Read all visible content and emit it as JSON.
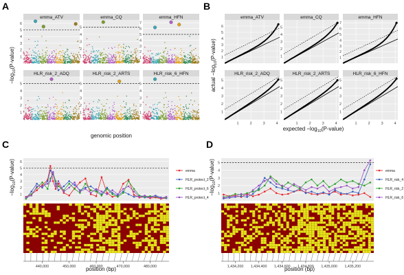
{
  "panels": {
    "A": {
      "letter": "A",
      "xlabel": "genomic position",
      "ylabel_main": "−log",
      "ylabel_sub": "10",
      "ylabel_tail": "(P-value)"
    },
    "B": {
      "letter": "B",
      "xlabel_main": "expected  −log",
      "xlabel_sub": "10",
      "xlabel_tail": "(P-value)",
      "ylabel_main": "actual  −log",
      "ylabel_sub": "10",
      "ylabel_tail": "(P-value)"
    },
    "C": {
      "letter": "C",
      "xlabel": "position (bp)",
      "ylabel_main": "−log",
      "ylabel_sub": "10",
      "ylabel_tail": "(P-value)"
    },
    "D": {
      "letter": "D",
      "xlabel": "position (bp)",
      "ylabel_main": "−log",
      "ylabel_sub": "10",
      "ylabel_tail": "(P-value)"
    }
  },
  "chart_data": [
    {
      "id": "A",
      "type": "scatter",
      "title": "",
      "threshold": 5.0,
      "chromosome_colors": [
        "#d23a6a",
        "#3aa6b6",
        "#7a9d2a",
        "#b35fc6",
        "#e0a11a",
        "#2e8b57",
        "#9a7b1c"
      ],
      "facets": [
        {
          "name": "emma_ATV",
          "ylim": [
            0,
            6.5
          ],
          "yticks": [
            1,
            2,
            3,
            4,
            5,
            6
          ],
          "top_hits": [
            {
              "chrom": 2,
              "value": 6.3
            },
            {
              "chrom": 3,
              "value": 5.5
            },
            {
              "chrom": 7,
              "value": 5.9
            }
          ]
        },
        {
          "name": "emma_CQ",
          "ylim": [
            0,
            6
          ],
          "yticks": [
            1,
            2,
            3,
            4,
            5
          ],
          "top_hits": [
            {
              "chrom": 3,
              "value": 5.7
            }
          ]
        },
        {
          "name": "emma_HFN",
          "ylim": [
            0,
            7.5
          ],
          "yticks": [
            1,
            2,
            3,
            4,
            5,
            6,
            7
          ],
          "top_hits": [
            {
              "chrom": 4,
              "value": 7.1
            },
            {
              "chrom": 5,
              "value": 6.7
            },
            {
              "chrom": 2,
              "value": 6.2
            }
          ]
        },
        {
          "name": "HLR_risk_2_ADQ",
          "ylim": [
            0,
            6
          ],
          "yticks": [
            1,
            2,
            3,
            4,
            5
          ],
          "top_hits": [
            {
              "chrom": 4,
              "value": 5.6
            }
          ]
        },
        {
          "name": "HLR_risk_2_ARTS",
          "ylim": [
            0,
            6
          ],
          "yticks": [
            1,
            2,
            3,
            4,
            5
          ],
          "top_hits": [
            {
              "chrom": 5,
              "value": 5.3
            }
          ]
        },
        {
          "name": "HLR_risk_6_HFN",
          "ylim": [
            0,
            6
          ],
          "yticks": [
            1,
            2,
            3,
            4,
            5
          ],
          "top_hits": [
            {
              "chrom": 2,
              "value": 5.6
            }
          ]
        }
      ]
    },
    {
      "id": "B",
      "type": "scatter",
      "title": "",
      "xlim": [
        0,
        4.2
      ],
      "xticks": [
        1,
        2,
        3,
        4
      ],
      "facets": [
        {
          "name": "emma_ATV",
          "ylim": [
            0,
            7
          ],
          "yticks": [
            1,
            2,
            3,
            4,
            5,
            6
          ],
          "max_expected": 4.1,
          "max_actual": 6.3
        },
        {
          "name": "emma_CQ",
          "ylim": [
            0,
            6
          ],
          "yticks": [
            1,
            2,
            3,
            4,
            5
          ],
          "max_expected": 4.1,
          "max_actual": 5.6
        },
        {
          "name": "emma_HFN",
          "ylim": [
            0,
            7.5
          ],
          "yticks": [
            1,
            2,
            3,
            4,
            5,
            6,
            7
          ],
          "max_expected": 4.1,
          "max_actual": 7.0
        },
        {
          "name": "HLR_risk_2_ADQ",
          "ylim": [
            0,
            5.5
          ],
          "yticks": [
            1,
            2,
            3,
            4,
            5
          ],
          "max_expected": 4.1,
          "max_actual": 5.1
        },
        {
          "name": "HLR_risk_2_ARTS",
          "ylim": [
            0,
            5.5
          ],
          "yticks": [
            1,
            2,
            3,
            4,
            5
          ],
          "max_expected": 4.1,
          "max_actual": 5.0
        },
        {
          "name": "HLR_risk_6_HFN",
          "ylim": [
            0,
            5.5
          ],
          "yticks": [
            1,
            2,
            3,
            4,
            5
          ],
          "max_expected": 4.1,
          "max_actual": 5.2
        }
      ]
    },
    {
      "id": "C",
      "type": "line",
      "title": "",
      "xlim": [
        433000,
        487000
      ],
      "xticks": [
        440000,
        450000,
        460000,
        470000,
        480000
      ],
      "xticklabels": [
        "440,000",
        "450,000",
        "460,000",
        "470,000",
        "480,000"
      ],
      "ylim": [
        0,
        6.5
      ],
      "yticks": [
        1,
        2,
        3,
        4,
        5,
        6
      ],
      "threshold": 5.0,
      "x": [
        434000,
        436000,
        438000,
        440000,
        442000,
        443000,
        444000,
        445000,
        446000,
        448000,
        450000,
        452000,
        454000,
        456000,
        458000,
        460000,
        462000,
        464000,
        466000,
        468000,
        470000,
        472000,
        474000,
        476000,
        478000,
        480000,
        482000,
        484000,
        486000
      ],
      "series": [
        {
          "name": "emma",
          "color": "#e8262c",
          "values": [
            0.6,
            1.0,
            1.6,
            2.4,
            3.2,
            5.3,
            3.0,
            1.8,
            2.6,
            1.2,
            0.8,
            1.9,
            2.8,
            3.4,
            1.0,
            0.7,
            3.6,
            1.2,
            0.6,
            0.8,
            2.6,
            3.2,
            0.9,
            0.5,
            0.6,
            0.4,
            0.5,
            0.3,
            0.4
          ]
        },
        {
          "name": "HLR_protect_2",
          "color": "#3b5fbf",
          "values": [
            0.4,
            1.4,
            2.6,
            2.0,
            3.0,
            4.6,
            4.0,
            2.6,
            1.6,
            2.2,
            3.0,
            2.4,
            1.6,
            2.0,
            2.2,
            1.6,
            1.0,
            2.0,
            1.2,
            0.8,
            1.4,
            1.0,
            0.6,
            0.7,
            0.5,
            0.6,
            0.8,
            0.5,
            0.4
          ]
        },
        {
          "name": "HLR_protect_6",
          "color": "#2ca02c",
          "values": [
            0.3,
            1.0,
            2.0,
            2.8,
            1.8,
            3.4,
            4.2,
            3.0,
            2.2,
            1.6,
            2.6,
            1.8,
            1.2,
            2.6,
            1.6,
            1.4,
            0.8,
            1.8,
            1.0,
            0.6,
            1.2,
            3.0,
            1.8,
            0.8,
            0.6,
            0.7,
            0.6,
            0.4,
            0.5
          ]
        },
        {
          "name": "HLR_protect_4",
          "color": "#9b4fc7",
          "values": [
            0.5,
            0.8,
            2.2,
            2.2,
            2.6,
            3.0,
            4.4,
            2.2,
            3.0,
            1.4,
            2.0,
            2.8,
            1.4,
            1.8,
            1.2,
            1.8,
            1.4,
            1.0,
            1.6,
            1.0,
            1.8,
            2.2,
            1.4,
            0.6,
            0.8,
            0.5,
            0.7,
            0.4,
            0.6
          ]
        }
      ]
    },
    {
      "id": "D",
      "type": "line",
      "title": "",
      "xlim": [
        1434080,
        1435380
      ],
      "xticks": [
        1434200,
        1434400,
        1434600,
        1434800,
        1435000,
        1435200
      ],
      "xticklabels": [
        "1,434,200",
        "1,434,400",
        "1,434,600",
        "1,434,800",
        "1,435,000",
        "1,435,200"
      ],
      "ylim": [
        0,
        5.6
      ],
      "yticks": [
        1,
        2,
        3,
        4,
        5
      ],
      "threshold": 5.0,
      "x": [
        1434100,
        1434150,
        1434200,
        1434250,
        1434300,
        1434350,
        1434400,
        1434450,
        1434500,
        1434550,
        1434600,
        1434650,
        1434700,
        1434750,
        1434800,
        1434850,
        1434900,
        1434950,
        1435000,
        1435050,
        1435100,
        1435150,
        1435200,
        1435250,
        1435300,
        1435350
      ],
      "series": [
        {
          "name": "emma",
          "color": "#e8262c",
          "values": [
            0.8,
            0.6,
            0.7,
            0.5,
            0.9,
            0.6,
            0.8,
            1.2,
            1.6,
            1.0,
            0.8,
            0.9,
            1.2,
            1.4,
            1.1,
            0.9,
            0.8,
            1.0,
            0.9,
            1.2,
            0.8,
            0.9,
            0.7,
            0.8,
            1.0,
            0.5
          ]
        },
        {
          "name": "HLR_risk_4",
          "color": "#3b5fbf",
          "values": [
            0.3,
            0.4,
            0.5,
            0.6,
            0.5,
            0.9,
            1.6,
            3.0,
            2.4,
            1.8,
            1.6,
            1.4,
            1.2,
            1.6,
            1.0,
            1.2,
            0.9,
            1.1,
            0.8,
            1.4,
            1.0,
            0.9,
            1.2,
            1.0,
            2.8,
            4.8
          ]
        },
        {
          "name": "HLR_risk_2",
          "color": "#2ca02c",
          "values": [
            0.5,
            0.6,
            0.9,
            0.8,
            1.0,
            1.2,
            1.4,
            2.0,
            3.2,
            2.6,
            1.8,
            2.4,
            2.0,
            1.6,
            2.4,
            2.8,
            2.0,
            2.6,
            1.8,
            2.2,
            2.8,
            2.4,
            2.6,
            2.2,
            2.0,
            2.4
          ]
        },
        {
          "name": "HLR_risk_6",
          "color": "#9b4fc7",
          "values": [
            0.4,
            0.5,
            0.6,
            0.9,
            0.7,
            1.4,
            2.0,
            2.6,
            3.0,
            2.2,
            2.0,
            1.6,
            2.2,
            1.8,
            1.4,
            1.8,
            1.6,
            2.0,
            1.2,
            1.6,
            1.8,
            2.0,
            1.6,
            1.8,
            4.0,
            5.3
          ]
        }
      ]
    }
  ]
}
